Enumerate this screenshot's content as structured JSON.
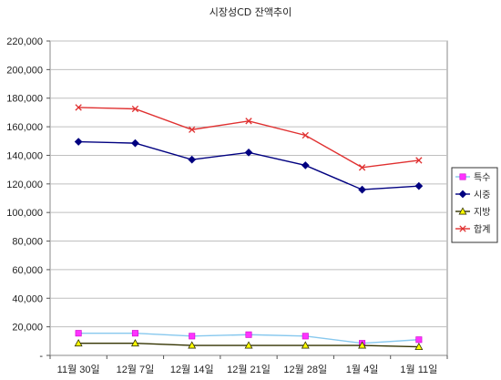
{
  "chart_data": {
    "type": "line",
    "title": "시장성CD 잔액추이",
    "xlabel": "",
    "ylabel": "",
    "categories": [
      "11월 30일",
      "12월 7일",
      "12월 14일",
      "12월 21일",
      "12월 28일",
      "1월 4일",
      "1월 11일"
    ],
    "ylim": [
      0,
      220000
    ],
    "yticks": [
      0,
      20000,
      40000,
      60000,
      80000,
      100000,
      120000,
      140000,
      160000,
      180000,
      200000,
      220000
    ],
    "ytick_labels": [
      "-",
      "20,000",
      "40,000",
      "60,000",
      "80,000",
      "100,000",
      "120,000",
      "140,000",
      "160,000",
      "180,000",
      "200,000",
      "220,000"
    ],
    "grid": "horizontal",
    "legend_position": "right",
    "series": [
      {
        "name": "특수",
        "values": [
          15500,
          15500,
          13500,
          14500,
          13500,
          8500,
          11000
        ],
        "color": "#87c8ee",
        "marker": "square",
        "marker_color": "#ff33ff"
      },
      {
        "name": "시중",
        "values": [
          149500,
          148500,
          137000,
          142000,
          133000,
          116000,
          118500
        ],
        "color": "#000080",
        "marker": "diamond",
        "marker_color": "#000080"
      },
      {
        "name": "지방",
        "values": [
          8500,
          8500,
          7000,
          7000,
          7000,
          7000,
          6000
        ],
        "color": "#333300",
        "marker": "triangle",
        "marker_color": "#ffff00"
      },
      {
        "name": "합계",
        "values": [
          173500,
          172500,
          158000,
          164000,
          154000,
          131500,
          136500
        ],
        "color": "#e03030",
        "marker": "x",
        "marker_color": "#e03030"
      }
    ]
  }
}
